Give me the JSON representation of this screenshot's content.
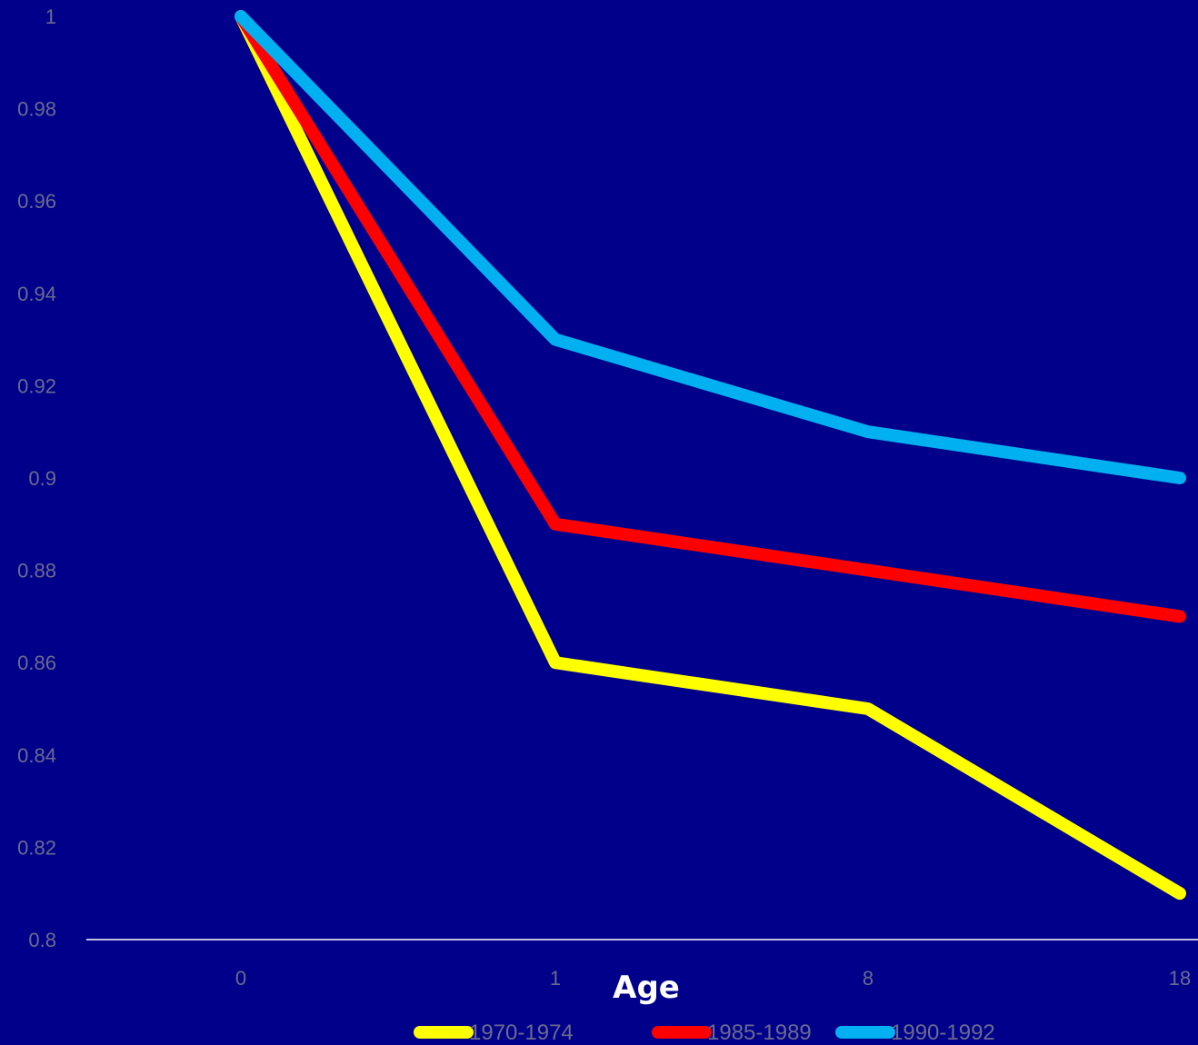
{
  "chart_data": {
    "type": "line",
    "title": "",
    "xlabel": "Age",
    "ylabel": "",
    "categories": [
      "0",
      "1",
      "8",
      "18"
    ],
    "ylim": [
      0.8,
      1
    ],
    "yticks": [
      "0.8",
      "0.82",
      "0.84",
      "0.86",
      "0.88",
      "0.9",
      "0.92",
      "0.94",
      "0.96",
      "0.98",
      "1"
    ],
    "grid": false,
    "legend": "bottom",
    "series": [
      {
        "name": "1970-1974",
        "color": "#ffff00",
        "values": [
          1,
          0.86,
          0.85,
          0.81
        ]
      },
      {
        "name": "1985-1989",
        "color": "#ff0000",
        "values": [
          1,
          0.89,
          0.88,
          0.87
        ]
      },
      {
        "name": "1990-1992",
        "color": "#00b0f0",
        "values": [
          1,
          0.93,
          0.91,
          0.9
        ]
      }
    ],
    "colors": {
      "background": "#00008b",
      "axis": "#ffffff",
      "tick_text": "#6b6b8e",
      "xlabel": "#ffffff"
    }
  }
}
